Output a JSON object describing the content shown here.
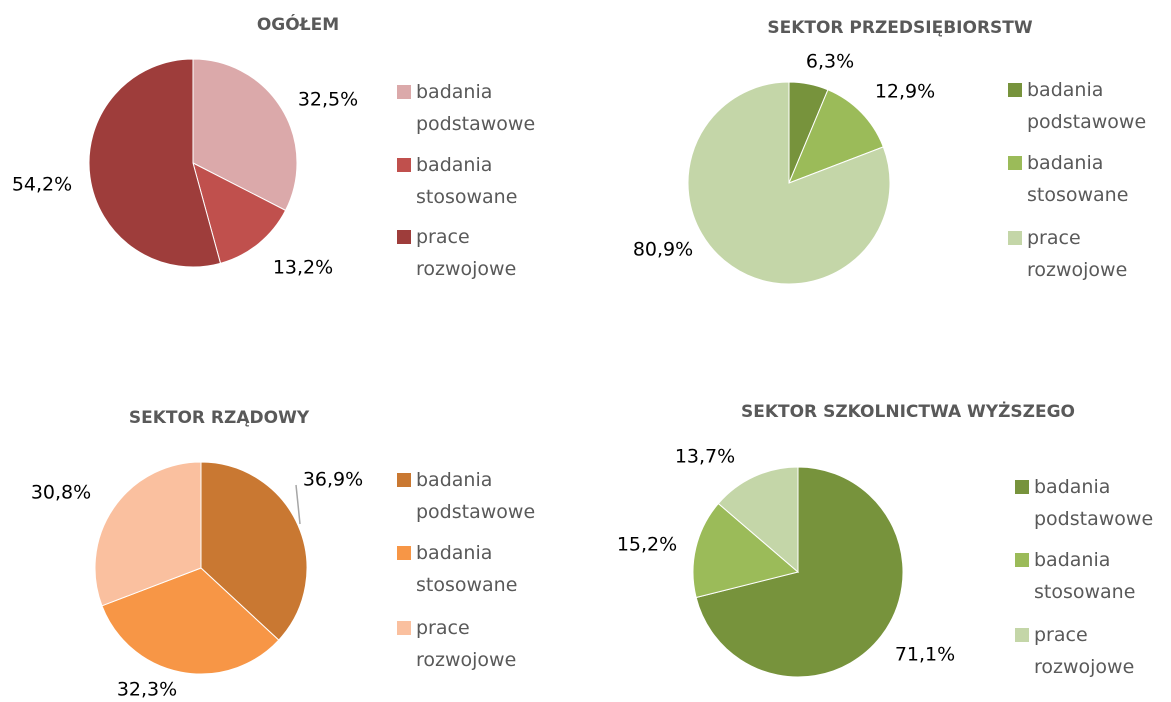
{
  "chart_data": [
    {
      "type": "pie",
      "title": "OGÓŁEM",
      "categories": [
        "badania podstawowe",
        "badania stosowane",
        "prace rozwojowe"
      ],
      "values": [
        32.5,
        13.2,
        54.2
      ],
      "value_labels": [
        "32,5%",
        "13,2%",
        "54,2%"
      ],
      "colors": [
        "#dba9aa",
        "#c0504d",
        "#9e3d3b"
      ]
    },
    {
      "type": "pie",
      "title": "SEKTOR PRZEDSIĘBIORSTW",
      "categories": [
        "badania podstawowe",
        "badania stosowane",
        "prace rozwojowe"
      ],
      "values": [
        6.3,
        12.9,
        80.9
      ],
      "value_labels": [
        "6,3%",
        "12,9%",
        "80,9%"
      ],
      "colors": [
        "#77933c",
        "#9bbb59",
        "#c4d6a8"
      ]
    },
    {
      "type": "pie",
      "title": "SEKTOR RZĄDOWY",
      "categories": [
        "badania podstawowe",
        "badania stosowane",
        "prace rozwojowe"
      ],
      "values": [
        36.9,
        32.3,
        30.8
      ],
      "value_labels": [
        "36,9%",
        "32,3%",
        "30,8%"
      ],
      "colors": [
        "#c97832",
        "#f79646",
        "#fac09f"
      ]
    },
    {
      "type": "pie",
      "title": "SEKTOR SZKOLNICTWA WYŻSZEGO",
      "categories": [
        "badania podstawowe",
        "badania stosowane",
        "prace rozwojowe"
      ],
      "values": [
        71.1,
        15.2,
        13.7
      ],
      "value_labels": [
        "71,1%",
        "15,2%",
        "13,7%"
      ],
      "colors": [
        "#77933c",
        "#9bbb59",
        "#c4d6a8"
      ]
    }
  ]
}
